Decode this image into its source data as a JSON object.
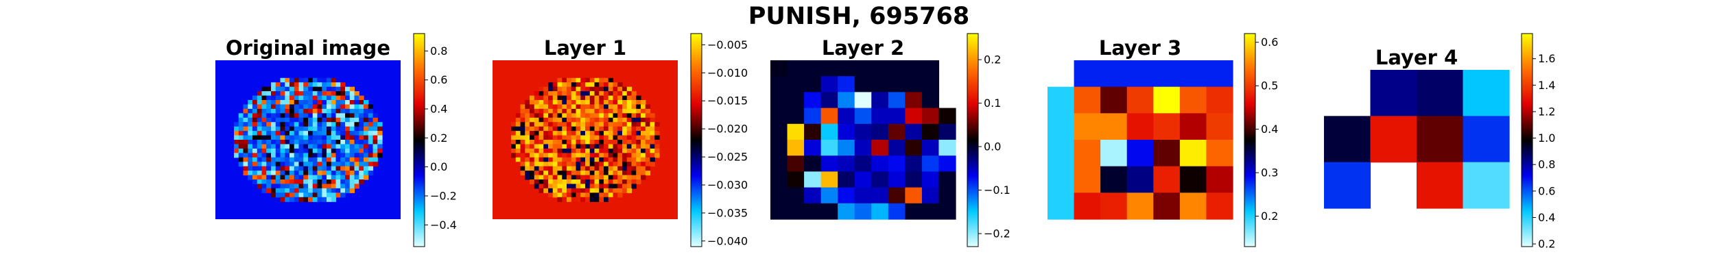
{
  "figure": {
    "suptitle": "PUNISH, 695768"
  },
  "colormap": {
    "name": "diverging cyan-blue-black-red-yellow",
    "stops": [
      "#e0ffff",
      "#00c8ff",
      "#0000ee",
      "#000000",
      "#e00000",
      "#ff7000",
      "#ffff00"
    ]
  },
  "chart_data": [
    {
      "type": "heatmap",
      "title": "Original image",
      "xlabel": "",
      "ylabel": "",
      "colorbar": {
        "ticks": [
          "0.8",
          "0.6",
          "0.4",
          "0.2",
          "0.0",
          "−0.2",
          "−0.4"
        ],
        "range": [
          -0.55,
          0.92
        ]
      },
      "background_value": -0.07,
      "grid": {
        "rows": 36,
        "cols": 40,
        "note": "circular region of mostly blue/cyan values with red/yellow spots near the rim"
      }
    },
    {
      "type": "heatmap",
      "title": "Layer 1",
      "xlabel": "",
      "ylabel": "",
      "colorbar": {
        "ticks": [
          "−0.005",
          "−0.010",
          "−0.015",
          "−0.020",
          "−0.025",
          "−0.030",
          "−0.035",
          "−0.040"
        ],
        "range": [
          -0.041,
          -0.003
        ]
      },
      "background_value": -0.0145,
      "grid": {
        "rows": 36,
        "cols": 40,
        "note": "circular region of red/orange/yellow/black values on a red background"
      }
    },
    {
      "type": "heatmap",
      "title": "Layer 2",
      "xlabel": "",
      "ylabel": "",
      "colorbar": {
        "ticks": [
          "0.2",
          "0.1",
          "0.0",
          "−0.1",
          "−0.2"
        ],
        "range": [
          -0.23,
          0.26
        ]
      },
      "values": [
        [
          0.005,
          0.0,
          0.0,
          0.0,
          0.0,
          0.0,
          0.0,
          0.0,
          0.0,
          0.0
        ],
        [
          0.0,
          0.0,
          0.0,
          -0.05,
          -0.08,
          0.0,
          0.0,
          0.0,
          0.0,
          0.0
        ],
        [
          0.0,
          0.0,
          -0.07,
          -0.03,
          -0.12,
          -0.23,
          -0.04,
          -0.1,
          0.06,
          0.0
        ],
        [
          0.0,
          0.0,
          -0.09,
          0.16,
          -0.05,
          -0.1,
          -0.05,
          -0.05,
          0.09,
          0.07,
          0.02
        ],
        [
          0.0,
          0.24,
          0.03,
          -0.15,
          -0.06,
          -0.04,
          -0.03,
          0.05,
          -0.04,
          0.02,
          -0.02
        ],
        [
          0.0,
          0.22,
          -0.06,
          -0.17,
          -0.12,
          -0.05,
          0.08,
          -0.04,
          0.03,
          -0.05,
          -0.2
        ],
        [
          0.0,
          0.04,
          0.0,
          -0.06,
          -0.05,
          -0.03,
          -0.06,
          -0.07,
          -0.03,
          -0.09,
          -0.07
        ],
        [
          0.0,
          0.02,
          -0.2,
          0.22,
          -0.02,
          -0.06,
          -0.03,
          -0.06,
          -0.02,
          -0.06,
          0.0
        ],
        [
          0.0,
          0.0,
          -0.05,
          -0.12,
          -0.07,
          -0.05,
          -0.05,
          0.04,
          0.16,
          -0.05,
          0.0
        ],
        [
          0.0,
          0.0,
          0.0,
          0.0,
          -0.13,
          -0.11,
          -0.14,
          -0.09,
          0.0,
          0.0,
          0.0
        ]
      ]
    },
    {
      "type": "heatmap",
      "title": "Layer 3",
      "xlabel": "",
      "ylabel": "",
      "colorbar": {
        "ticks": [
          "0.6",
          "0.5",
          "0.4",
          "0.3",
          "0.2"
        ],
        "range": [
          0.13,
          0.62
        ]
      },
      "values": [
        [
          null,
          0.28,
          0.28,
          0.28,
          0.28,
          0.28,
          0.28
        ],
        [
          0.2,
          0.52,
          0.41,
          0.5,
          0.62,
          0.52,
          0.49
        ],
        [
          0.2,
          0.55,
          0.55,
          0.47,
          0.49,
          0.44,
          0.5
        ],
        [
          0.2,
          0.53,
          0.15,
          0.29,
          0.41,
          0.61,
          0.53
        ],
        [
          0.2,
          0.53,
          0.36,
          0.33,
          0.48,
          0.38,
          0.44
        ],
        [
          0.2,
          0.47,
          0.48,
          0.55,
          0.42,
          0.55,
          0.48
        ]
      ]
    },
    {
      "type": "heatmap",
      "title": "Layer 4",
      "xlabel": "",
      "ylabel": "",
      "colorbar": {
        "ticks": [
          "1.6",
          "1.4",
          "1.2",
          "1.0",
          "0.8",
          "0.6",
          "0.4",
          "0.2"
        ],
        "range": [
          0.18,
          1.79
        ]
      },
      "values": [
        [
          null,
          0.83,
          0.87,
          0.45
        ],
        [
          0.92,
          1.3,
          1.1,
          0.65
        ],
        [
          0.65,
          null,
          1.3,
          0.35
        ]
      ]
    }
  ]
}
